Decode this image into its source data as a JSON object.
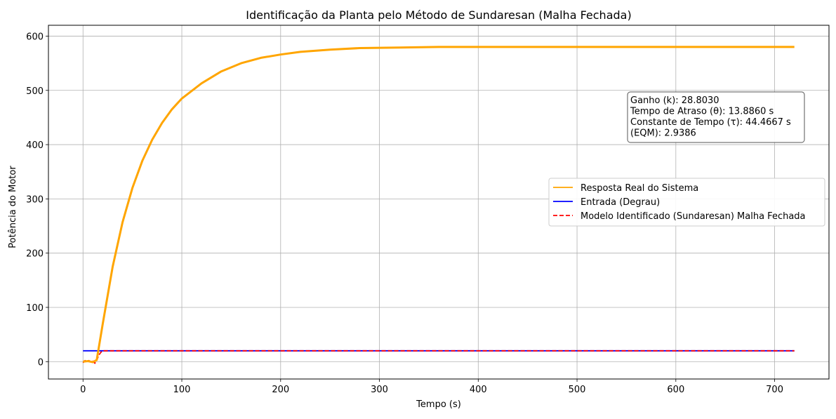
{
  "chart_data": {
    "type": "line",
    "title": "Identificação da Planta pelo Método de Sundaresan (Malha Fechada)",
    "xlabel": "Tempo (s)",
    "ylabel": "Potência do Motor",
    "xlim": [
      -35,
      755
    ],
    "ylim": [
      -32,
      620
    ],
    "xticks": [
      0,
      100,
      200,
      300,
      400,
      500,
      600,
      700
    ],
    "yticks": [
      0,
      100,
      200,
      300,
      400,
      500,
      600
    ],
    "grid": true,
    "legend_placement": "center-right",
    "series": [
      {
        "name": "Resposta Real do Sistema",
        "color": "#ffa500",
        "style": "solid",
        "x": [
          0,
          5,
          10,
          13.9,
          20,
          30,
          40,
          50,
          60,
          70,
          80,
          90,
          100,
          120,
          140,
          160,
          180,
          200,
          220,
          250,
          280,
          320,
          360,
          400,
          450,
          500,
          550,
          600,
          650,
          700,
          720
        ],
        "y": [
          0,
          1,
          -1,
          3,
          70,
          175,
          257,
          320,
          370,
          409,
          440,
          465,
          485,
          513,
          535,
          550,
          560,
          566,
          571,
          575,
          578,
          579,
          580,
          580,
          580,
          580,
          580,
          580,
          580,
          580,
          580
        ]
      },
      {
        "name": "Entrada (Degrau)",
        "color": "#0000ff",
        "style": "solid",
        "x": [
          0,
          720
        ],
        "y": [
          20,
          20
        ]
      },
      {
        "name": "Modelo Identificado (Sundaresan) Malha Fechada",
        "color": "#ff0000",
        "style": "dashed",
        "x": [
          0,
          2,
          4,
          6,
          8,
          10,
          12,
          14,
          16,
          18,
          20,
          100,
          300,
          500,
          720
        ],
        "y": [
          -2,
          2,
          -1,
          2,
          -1,
          1,
          -3,
          3,
          12,
          17,
          20,
          20,
          20,
          20,
          20
        ]
      }
    ],
    "annotation": {
      "lines": [
        "Ganho (k): 28.8030",
        "Tempo de Atraso (θ): 13.8860 s",
        "Constante de Tempo (τ): 44.4667 s",
        "(EQM): 2.9386"
      ]
    }
  }
}
